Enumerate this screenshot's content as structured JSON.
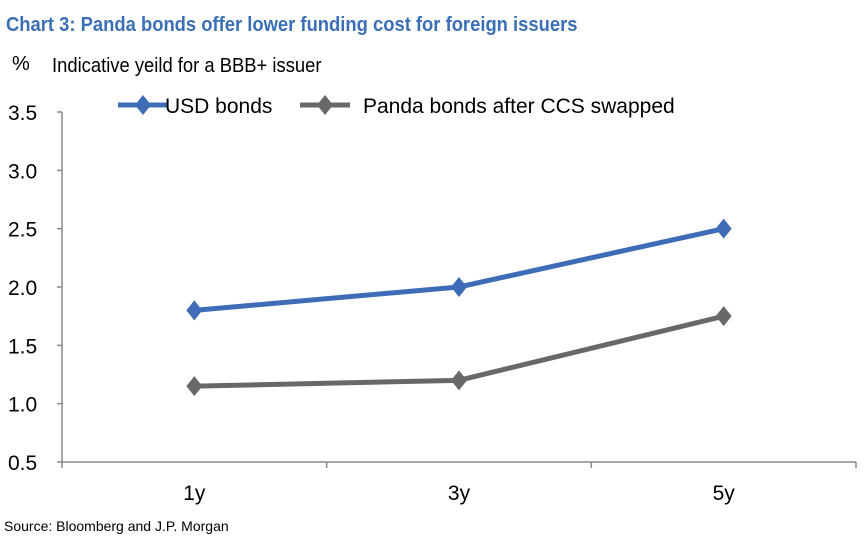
{
  "chart_data": {
    "type": "line",
    "title": "Chart 3: Panda bonds offer lower funding cost for foreign issuers",
    "unit_label": "%",
    "subtitle": "Indicative yeild for a BBB+ issuer",
    "categories": [
      "1y",
      "3y",
      "5y"
    ],
    "series": [
      {
        "name": "USD bonds",
        "values": [
          1.8,
          2.0,
          2.5
        ],
        "color": "#3E6CB6"
      },
      {
        "name": "Panda bonds after CCS swapped",
        "values": [
          1.15,
          1.2,
          1.75
        ],
        "color": "#686868"
      }
    ],
    "ylim": [
      0.5,
      3.5
    ],
    "yticks": [
      "0.5",
      "1.0",
      "1.5",
      "2.0",
      "2.5",
      "3.0",
      "3.5"
    ],
    "grid": false,
    "legend": "top",
    "source": "Source: Bloomberg and J.P. Morgan",
    "title_color": "#3A6FB7"
  }
}
